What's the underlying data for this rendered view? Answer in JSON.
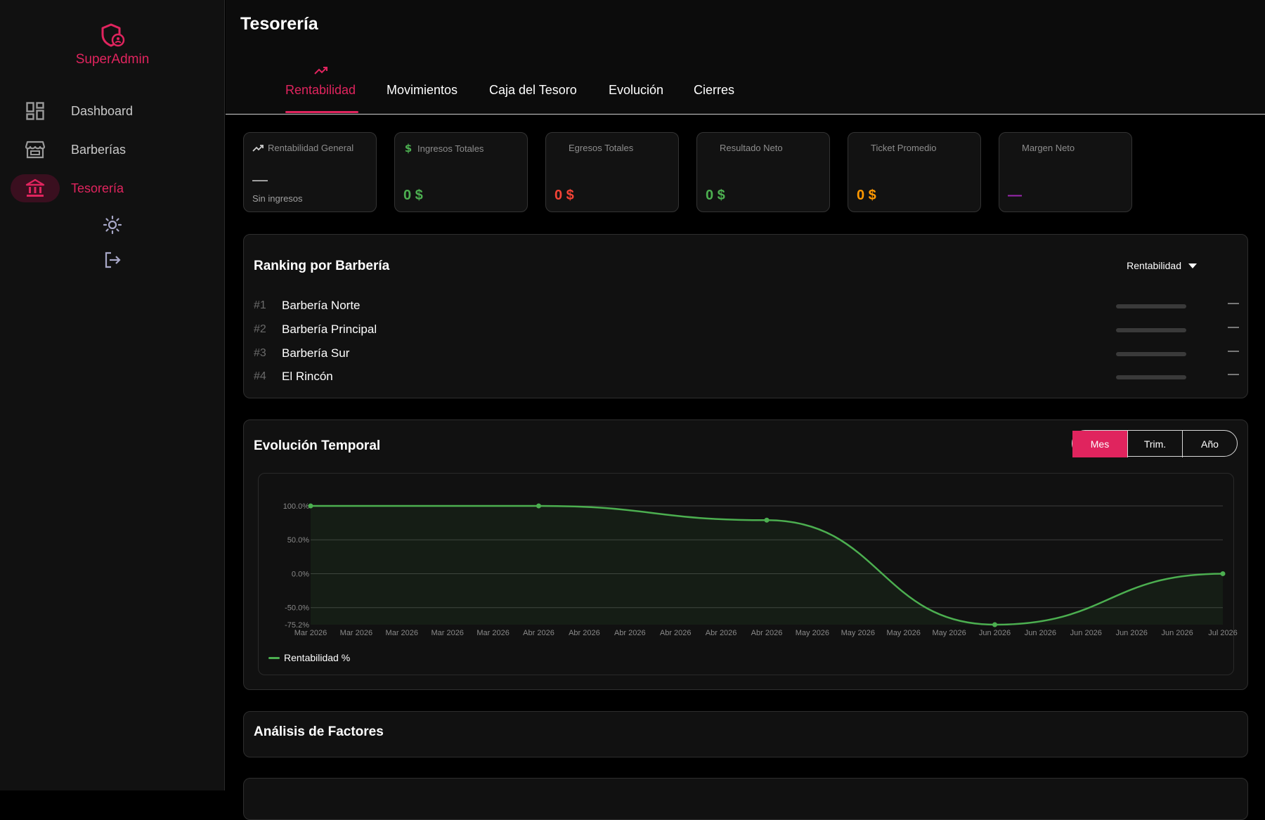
{
  "app": {
    "name": "SuperAdmin"
  },
  "sidebar": {
    "items": [
      {
        "label": "Dashboard",
        "icon": "dashboard-icon",
        "active": false
      },
      {
        "label": "Barberías",
        "icon": "store-icon",
        "active": false
      },
      {
        "label": "Tesorería",
        "icon": "bank-icon",
        "active": true
      }
    ],
    "theme_icon": "sun-icon",
    "logout_icon": "logout-icon"
  },
  "page": {
    "title": "Tesorería"
  },
  "tabs": [
    {
      "label": "Rentabilidad",
      "active": true,
      "icon": "trending-up-icon"
    },
    {
      "label": "Movimientos",
      "active": false
    },
    {
      "label": "Caja del Tesoro",
      "active": false
    },
    {
      "label": "Evolución",
      "active": false
    },
    {
      "label": "Cierres",
      "active": false
    }
  ],
  "kpis": [
    {
      "title": "Rentabilidad General",
      "value": "—",
      "sub": "Sin ingresos",
      "icon": "trending-up-icon",
      "color": "#cfcfcf"
    },
    {
      "title": "Ingresos Totales",
      "value": "0 $",
      "icon": "dollar-icon",
      "color": "#4caf50"
    },
    {
      "title": "Egresos Totales",
      "value": "0 $",
      "color": "#f44336"
    },
    {
      "title": "Resultado Neto",
      "value": "0 $",
      "color": "#4caf50"
    },
    {
      "title": "Ticket Promedio",
      "value": "0 $",
      "color": "#ff9800"
    },
    {
      "title": "Margen Neto",
      "value": "—",
      "color": "#9c27b0"
    }
  ],
  "ranking": {
    "title": "Ranking por Barbería",
    "sort_label": "Rentabilidad",
    "rows": [
      {
        "rank": "#1",
        "name": "Barbería Norte",
        "value": "—"
      },
      {
        "rank": "#2",
        "name": "Barbería Principal",
        "value": "—"
      },
      {
        "rank": "#3",
        "name": "Barbería Sur",
        "value": "—"
      },
      {
        "rank": "#4",
        "name": "El Rincón",
        "value": "—"
      }
    ]
  },
  "evolution": {
    "title": "Evolución Temporal",
    "periods": [
      {
        "label": "Mes",
        "active": true
      },
      {
        "label": "Trim.",
        "active": false
      },
      {
        "label": "Año",
        "active": false
      }
    ]
  },
  "factors": {
    "title": "Análisis de Factores"
  },
  "chart_data": {
    "type": "area",
    "title": "",
    "xlabel": "",
    "ylabel": "",
    "x": [
      "Mar 2026",
      "Mar 2026",
      "Mar 2026",
      "Mar 2026",
      "Mar 2026",
      "Abr 2026",
      "Abr 2026",
      "Abr 2026",
      "Abr 2026",
      "Abr 2026",
      "Abr 2026",
      "May 2026",
      "May 2026",
      "May 2026",
      "May 2026",
      "Jun 2026",
      "Jun 2026",
      "Jun 2026",
      "Jun 2026",
      "Jun 2026",
      "Jul 2026"
    ],
    "y_ticks": [
      "100.0%",
      "50.0%",
      "0.0%",
      "-50.0%",
      "-75.2%"
    ],
    "y_tick_values": [
      100,
      50,
      0,
      -50,
      -75.2
    ],
    "ylim": [
      -75.2,
      100
    ],
    "grid": true,
    "legend_position": "bottom-left",
    "series": [
      {
        "name": "Rentabilidad %",
        "color": "#4caf50",
        "points": [
          {
            "x_index": 0,
            "y": 100
          },
          {
            "x_index": 5,
            "y": 100
          },
          {
            "x_index": 10,
            "y": 79
          },
          {
            "x_index": 15,
            "y": -75.2
          },
          {
            "x_index": 20,
            "y": 0
          }
        ]
      }
    ]
  }
}
